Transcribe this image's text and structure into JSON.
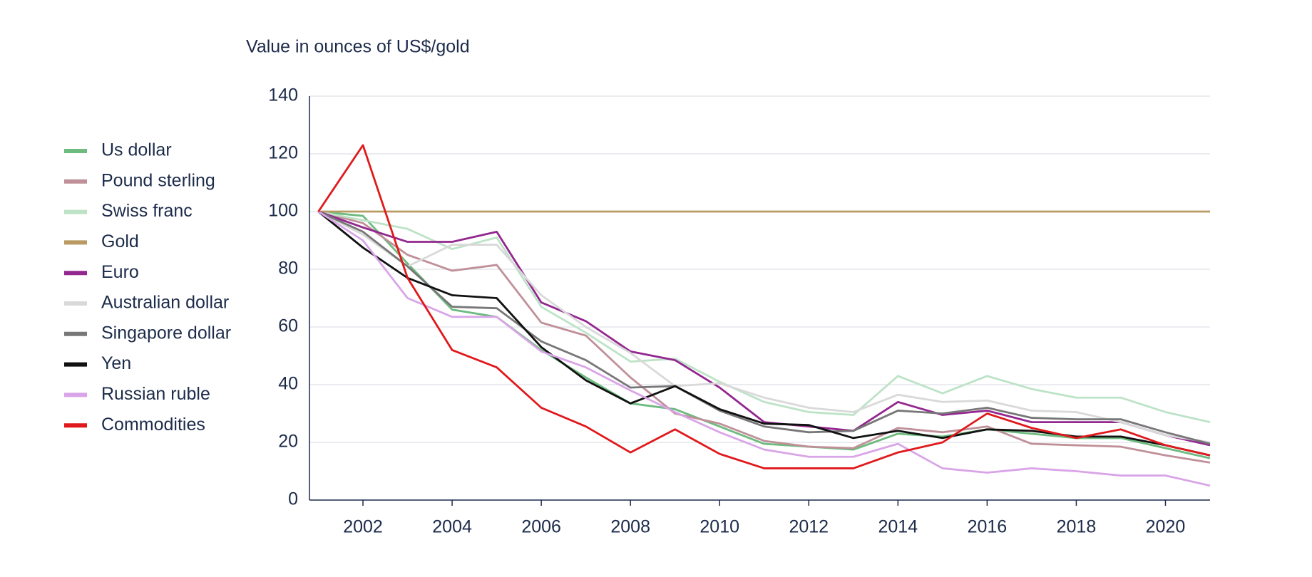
{
  "chart_data": {
    "type": "line",
    "title": "Value in ounces of US$/gold",
    "x": [
      2001,
      2002,
      2003,
      2004,
      2005,
      2006,
      2007,
      2008,
      2009,
      2010,
      2011,
      2012,
      2013,
      2014,
      2015,
      2016,
      2017,
      2018,
      2019,
      2020,
      2021
    ],
    "xlim": [
      2000.8,
      2021
    ],
    "xticks": [
      2002,
      2004,
      2006,
      2008,
      2010,
      2012,
      2014,
      2016,
      2018,
      2020
    ],
    "ylim": [
      0,
      140
    ],
    "yticks": [
      0,
      20,
      40,
      60,
      80,
      100,
      120,
      140
    ],
    "grid": true,
    "legend": "left",
    "series": [
      {
        "name": "Us dollar",
        "color": "#6dbb7f",
        "values": [
          100,
          98.5,
          82,
          66,
          63.5,
          52,
          42.5,
          33.5,
          31.5,
          25.5,
          19.5,
          18.5,
          17.5,
          23,
          22,
          24.5,
          23,
          21.5,
          21.5,
          18,
          14.5
        ]
      },
      {
        "name": "Pound sterling",
        "color": "#c09099",
        "values": [
          100,
          96,
          85,
          79.5,
          81.5,
          61.5,
          57,
          42.5,
          30,
          26.5,
          20.5,
          18.5,
          18,
          25,
          23.5,
          25.5,
          19.5,
          19,
          18.5,
          15.5,
          13
        ]
      },
      {
        "name": "Swiss franc",
        "color": "#bde3c7",
        "values": [
          100,
          97,
          94,
          87,
          91,
          67,
          58,
          48,
          49,
          41,
          34,
          30.5,
          29.5,
          43,
          37,
          43,
          38.5,
          35.5,
          35.5,
          30.5,
          27
        ]
      },
      {
        "name": "Gold",
        "color": "#b89a62",
        "values": [
          100,
          100,
          100,
          100,
          100,
          100,
          100,
          100,
          100,
          100,
          100,
          100,
          100,
          100,
          100,
          100,
          100,
          100,
          100,
          100,
          100
        ]
      },
      {
        "name": "Euro",
        "color": "#93278f",
        "values": [
          100,
          94.5,
          89.5,
          89.5,
          93,
          68.5,
          62,
          51.5,
          48.5,
          39,
          27,
          25.5,
          24,
          34,
          29.5,
          31,
          27,
          27,
          27,
          22.5,
          19
        ]
      },
      {
        "name": "Australian dollar",
        "color": "#d9d9d9",
        "values": [
          100,
          92,
          81,
          88.5,
          88.5,
          71,
          60,
          51,
          39.5,
          40.5,
          35.5,
          32,
          30.5,
          36.5,
          34,
          34.5,
          31,
          30.5,
          27,
          22.5,
          20
        ]
      },
      {
        "name": "Singapore dollar",
        "color": "#777777",
        "values": [
          100,
          93,
          81,
          67,
          66.5,
          55,
          48.5,
          39,
          39.5,
          31,
          25.5,
          23.5,
          24,
          31,
          30,
          32,
          28.5,
          28,
          28,
          23.5,
          19.5
        ]
      },
      {
        "name": "Yen",
        "color": "#111111",
        "values": [
          100,
          87.5,
          77,
          71,
          70,
          53,
          41.5,
          33.5,
          39.5,
          31.5,
          26.5,
          26,
          21.5,
          24,
          21.5,
          24.5,
          24,
          22,
          22,
          19,
          15.5
        ]
      },
      {
        "name": "Russian ruble",
        "color": "#d9a5e8",
        "values": [
          100,
          90,
          70,
          63.5,
          63.5,
          51.5,
          46,
          38,
          30.5,
          23.5,
          17.5,
          15,
          15,
          19.5,
          11,
          9.5,
          11,
          10,
          8.5,
          8.5,
          5
        ]
      },
      {
        "name": "Commodities",
        "color": "#e0191c",
        "values": [
          100,
          123,
          77,
          52,
          46,
          32,
          25.5,
          16.5,
          24.5,
          16,
          11,
          11,
          11,
          16.5,
          20,
          30,
          25,
          21.5,
          24.5,
          19,
          15.5
        ]
      }
    ]
  }
}
